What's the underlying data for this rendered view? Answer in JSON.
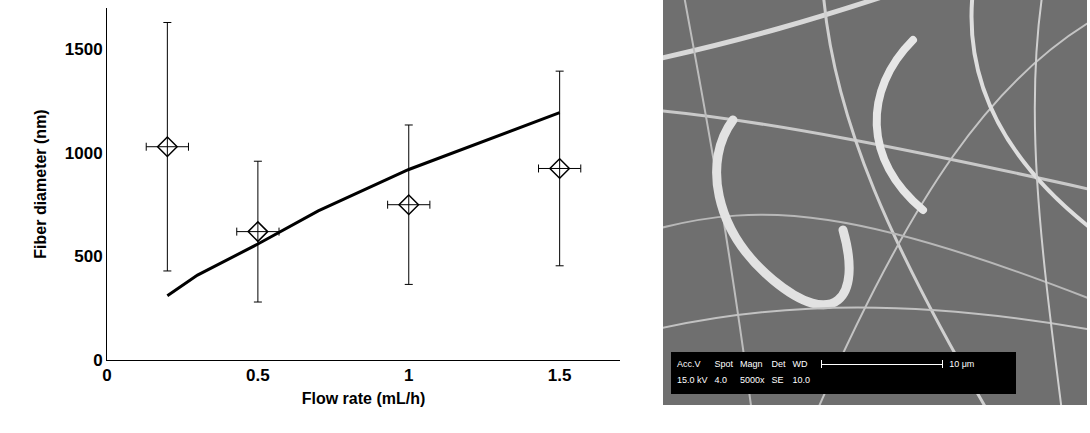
{
  "chart_data": {
    "type": "scatter",
    "x_label": "Flow rate (mL/h)",
    "y_label": "Fiber diameter (nm)",
    "xlim": [
      0,
      1.7
    ],
    "ylim": [
      0,
      1700
    ],
    "xticks": [
      0,
      0.5,
      1,
      1.5
    ],
    "yticks": [
      0,
      500,
      1000,
      1500
    ],
    "grid": false,
    "series": [
      {
        "type": "scatter",
        "marker": "diamond-open",
        "color": "#000000",
        "x": [
          0.2,
          0.5,
          1.0,
          1.5
        ],
        "values": [
          1030,
          620,
          750,
          925
        ],
        "y_error": [
          600,
          340,
          385,
          470
        ],
        "x_error": [
          0.07,
          0.07,
          0.07,
          0.07
        ]
      },
      {
        "type": "line",
        "line_style": "solid",
        "color": "#000000",
        "x": [
          0.2,
          0.3,
          0.5,
          0.7,
          1.0,
          1.5
        ],
        "values": [
          310,
          410,
          560,
          720,
          920,
          1195
        ]
      }
    ]
  },
  "image_panel": {
    "info_labels": [
      "Acc.V",
      "Spot",
      "Magn",
      "Det",
      "WD"
    ],
    "info_values": [
      "15.0 kV",
      "4.0",
      "5000x",
      "SE",
      "10.0"
    ],
    "scale_bar": "10 μm"
  }
}
